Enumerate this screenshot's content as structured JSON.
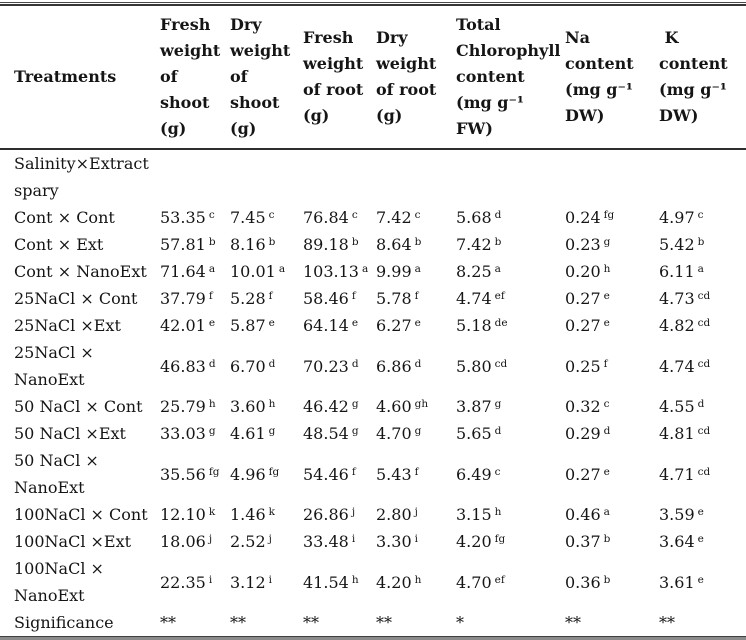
{
  "table": {
    "columns": [
      {
        "label": "Treatments"
      },
      {
        "label": "Fresh\nweight\nof\nshoot\n(g)"
      },
      {
        "label": "Dry\nweight\nof\nshoot\n(g)"
      },
      {
        "label": "Fresh\nweight\nof root\n(g)"
      },
      {
        "label": "Dry\nweight\nof root\n(g)"
      },
      {
        "label": "Total\nChlorophyll\ncontent\n(mg g⁻¹ FW)"
      },
      {
        "label": "Na\ncontent\n(mg g⁻¹\nDW)"
      },
      {
        "label": " K\ncontent\n(mg g⁻¹\nDW)"
      }
    ],
    "rows": [
      {
        "label": "Salinity×Extract\nspary",
        "cells": []
      },
      {
        "label": "Cont × Cont",
        "cells": [
          {
            "v": "53.35",
            "s": "c"
          },
          {
            "v": "7.45",
            "s": "c"
          },
          {
            "v": "76.84",
            "s": "c"
          },
          {
            "v": "7.42",
            "s": "c"
          },
          {
            "v": "5.68",
            "s": "d"
          },
          {
            "v": "0.24",
            "s": "fg"
          },
          {
            "v": "4.97",
            "s": "c"
          }
        ]
      },
      {
        "label": "Cont × Ext",
        "cells": [
          {
            "v": "57.81",
            "s": "b"
          },
          {
            "v": "8.16",
            "s": "b"
          },
          {
            "v": "89.18",
            "s": "b"
          },
          {
            "v": "8.64",
            "s": "b"
          },
          {
            "v": "7.42",
            "s": "b"
          },
          {
            "v": "0.23",
            "s": "g"
          },
          {
            "v": "5.42",
            "s": "b"
          }
        ]
      },
      {
        "label": "Cont × NanoExt",
        "cells": [
          {
            "v": "71.64",
            "s": "a"
          },
          {
            "v": "10.01",
            "s": "a"
          },
          {
            "v": "103.13",
            "s": "a"
          },
          {
            "v": "9.99",
            "s": "a"
          },
          {
            "v": "8.25",
            "s": "a"
          },
          {
            "v": "0.20",
            "s": "h"
          },
          {
            "v": "6.11",
            "s": "a"
          }
        ]
      },
      {
        "label": "25NaCl × Cont",
        "cells": [
          {
            "v": "37.79",
            "s": "f"
          },
          {
            "v": "5.28",
            "s": "f"
          },
          {
            "v": "58.46",
            "s": "f"
          },
          {
            "v": "5.78",
            "s": "f"
          },
          {
            "v": "4.74",
            "s": "ef"
          },
          {
            "v": "0.27",
            "s": "e"
          },
          {
            "v": "4.73",
            "s": "cd"
          }
        ]
      },
      {
        "label": "25NaCl ×Ext",
        "cells": [
          {
            "v": "42.01",
            "s": "e"
          },
          {
            "v": "5.87",
            "s": "e"
          },
          {
            "v": "64.14",
            "s": "e"
          },
          {
            "v": "6.27",
            "s": "e"
          },
          {
            "v": "5.18",
            "s": "de"
          },
          {
            "v": "0.27",
            "s": "e"
          },
          {
            "v": "4.82",
            "s": "cd"
          }
        ]
      },
      {
        "label": "25NaCl ×\nNanoExt",
        "cells": [
          {
            "v": "46.83",
            "s": "d"
          },
          {
            "v": "6.70",
            "s": "d"
          },
          {
            "v": "70.23",
            "s": "d"
          },
          {
            "v": "6.86",
            "s": "d"
          },
          {
            "v": "5.80",
            "s": "cd"
          },
          {
            "v": "0.25",
            "s": "f"
          },
          {
            "v": "4.74",
            "s": "cd"
          }
        ]
      },
      {
        "label": "50 NaCl × Cont",
        "cells": [
          {
            "v": "25.79",
            "s": "h"
          },
          {
            "v": "3.60",
            "s": "h"
          },
          {
            "v": "46.42",
            "s": "g"
          },
          {
            "v": "4.60",
            "s": "gh"
          },
          {
            "v": "3.87",
            "s": "g"
          },
          {
            "v": "0.32",
            "s": "c"
          },
          {
            "v": "4.55",
            "s": "d"
          }
        ]
      },
      {
        "label": "50 NaCl ×Ext",
        "cells": [
          {
            "v": "33.03",
            "s": "g"
          },
          {
            "v": "4.61",
            "s": "g"
          },
          {
            "v": "48.54",
            "s": "g"
          },
          {
            "v": "4.70",
            "s": "g"
          },
          {
            "v": "5.65",
            "s": "d"
          },
          {
            "v": "0.29",
            "s": "d"
          },
          {
            "v": "4.81",
            "s": "cd"
          }
        ]
      },
      {
        "label": "50 NaCl ×\nNanoExt",
        "cells": [
          {
            "v": "35.56",
            "s": "fg"
          },
          {
            "v": "4.96",
            "s": "fg"
          },
          {
            "v": "54.46",
            "s": "f"
          },
          {
            "v": "5.43",
            "s": "f"
          },
          {
            "v": "6.49",
            "s": "c"
          },
          {
            "v": "0.27",
            "s": "e"
          },
          {
            "v": "4.71",
            "s": "cd"
          }
        ]
      },
      {
        "label": "100NaCl × Cont",
        "cells": [
          {
            "v": "12.10",
            "s": "k"
          },
          {
            "v": "1.46",
            "s": "k"
          },
          {
            "v": "26.86",
            "s": "j"
          },
          {
            "v": "2.80",
            "s": "j"
          },
          {
            "v": "3.15",
            "s": "h"
          },
          {
            "v": "0.46",
            "s": "a"
          },
          {
            "v": "3.59",
            "s": "e"
          }
        ]
      },
      {
        "label": "100NaCl ×Ext",
        "cells": [
          {
            "v": "18.06",
            "s": "j"
          },
          {
            "v": "2.52",
            "s": "j"
          },
          {
            "v": "33.48",
            "s": "i"
          },
          {
            "v": "3.30",
            "s": "i"
          },
          {
            "v": "4.20",
            "s": "fg"
          },
          {
            "v": "0.37",
            "s": "b"
          },
          {
            "v": "3.64",
            "s": "e"
          }
        ]
      },
      {
        "label": "100NaCl ×\nNanoExt",
        "cells": [
          {
            "v": "22.35",
            "s": "i"
          },
          {
            "v": "3.12",
            "s": "i"
          },
          {
            "v": "41.54",
            "s": "h"
          },
          {
            "v": "4.20",
            "s": "h"
          },
          {
            "v": "4.70",
            "s": "ef"
          },
          {
            "v": "0.36",
            "s": "b"
          },
          {
            "v": "3.61",
            "s": "e"
          }
        ]
      },
      {
        "label": "Significance",
        "cells": [
          {
            "v": "**"
          },
          {
            "v": "**"
          },
          {
            "v": "**"
          },
          {
            "v": "**"
          },
          {
            "v": "*"
          },
          {
            "v": "**"
          },
          {
            "v": "**"
          }
        ]
      }
    ]
  }
}
